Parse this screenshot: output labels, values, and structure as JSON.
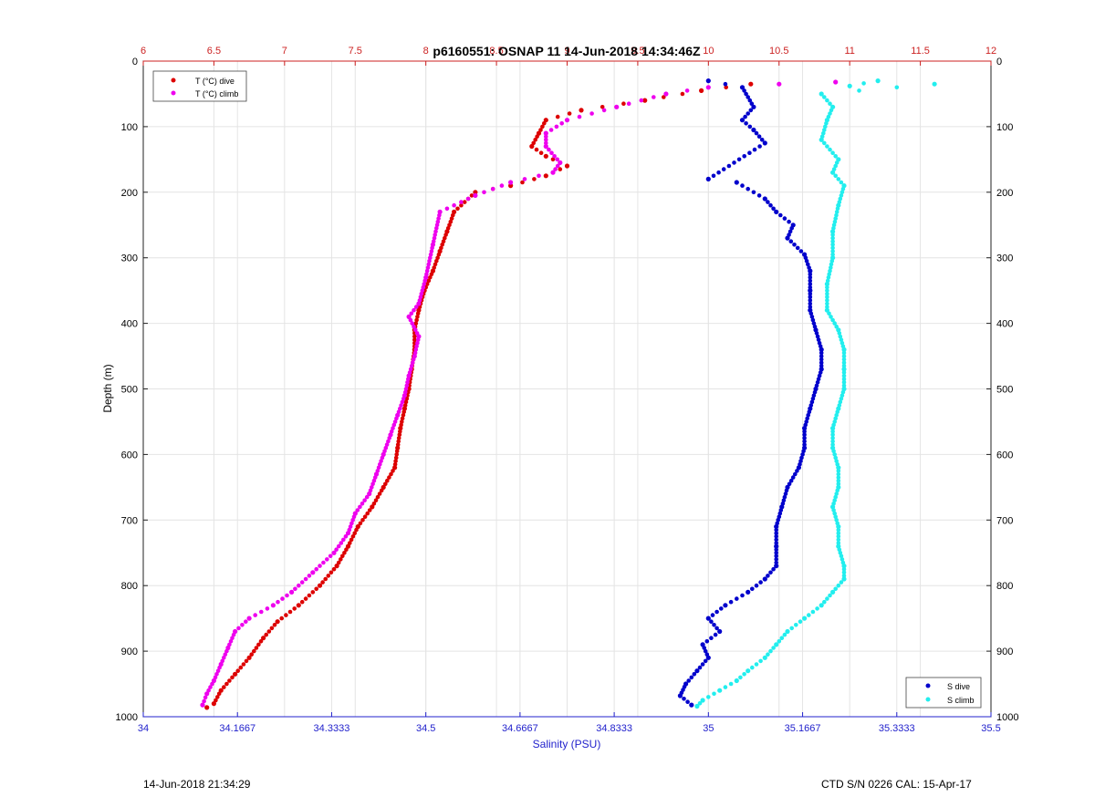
{
  "title": "p6160551: OSNAP 11 14-Jun-2018 14:34:46Z",
  "footer": {
    "left": "14-Jun-2018 21:34:29",
    "right": "CTD S/N 0226  CAL: 15-Apr-17"
  },
  "colors": {
    "t_dive": "#dd0000",
    "t_climb": "#ee00ee",
    "s_dive": "#0000cc",
    "s_climb": "#22eeee",
    "temp_axis": "#cc2222",
    "sal_axis": "#2222cc",
    "grid": "#e4e4e4"
  },
  "chart_data": {
    "type": "scatter",
    "ylabel": "Depth (m)",
    "xlabel_bottom": "Salinity (PSU)",
    "xlabel_top": "",
    "ylim": [
      0,
      1000
    ],
    "y_reversed": true,
    "y_ticks": [
      "0",
      "100",
      "200",
      "300",
      "400",
      "500",
      "600",
      "700",
      "800",
      "900",
      "1000"
    ],
    "salinity_axis": {
      "range": [
        34,
        35.5
      ],
      "ticks": [
        34,
        34.16667,
        34.33333,
        34.5,
        34.66667,
        34.83333,
        35,
        35.16667,
        35.33333,
        35.5
      ],
      "tick_labels": [
        "34",
        "34.1667",
        "34.3333",
        "34.5",
        "34.6667",
        "34.8333",
        "35",
        "35.1667",
        "35.3333",
        "35.5"
      ]
    },
    "temperature_axis": {
      "range": [
        6,
        12
      ],
      "ticks": [
        6,
        6.5,
        7,
        7.5,
        8,
        8.5,
        9,
        9.5,
        10,
        10.5,
        11,
        11.5,
        12
      ],
      "tick_labels": [
        "6",
        "6.5",
        "7",
        "7.5",
        "8",
        "8.5",
        "9",
        "9.5",
        "10",
        "10.5",
        "11",
        "11.5",
        "12"
      ]
    },
    "grid": true,
    "legends": [
      {
        "placement": "top-left",
        "entries": [
          "T (°C) dive",
          "T (°C) climb"
        ]
      },
      {
        "placement": "bottom-right",
        "entries": [
          "S dive",
          "S climb"
        ]
      }
    ],
    "series": [
      {
        "name": "T (°C) dive",
        "axis": "temperature",
        "points": [
          [
            10.3,
            35
          ],
          [
            9.95,
            45
          ],
          [
            9.55,
            60
          ],
          [
            9.1,
            75
          ],
          [
            8.85,
            90
          ],
          [
            8.8,
            110
          ],
          [
            8.75,
            130
          ],
          [
            8.85,
            145
          ],
          [
            9.0,
            160
          ],
          [
            8.85,
            175
          ],
          [
            8.6,
            190
          ],
          [
            8.35,
            200
          ],
          [
            8.2,
            230
          ],
          [
            8.15,
            260
          ],
          [
            8.1,
            290
          ],
          [
            8.05,
            320
          ],
          [
            7.99,
            350
          ],
          [
            7.95,
            380
          ],
          [
            7.92,
            410
          ],
          [
            7.92,
            440
          ],
          [
            7.9,
            470
          ],
          [
            7.88,
            500
          ],
          [
            7.85,
            530
          ],
          [
            7.82,
            560
          ],
          [
            7.8,
            590
          ],
          [
            7.78,
            620
          ],
          [
            7.7,
            650
          ],
          [
            7.62,
            680
          ],
          [
            7.52,
            710
          ],
          [
            7.45,
            740
          ],
          [
            7.37,
            770
          ],
          [
            7.25,
            800
          ],
          [
            7.1,
            830
          ],
          [
            6.95,
            855
          ],
          [
            6.85,
            880
          ],
          [
            6.75,
            910
          ],
          [
            6.65,
            935
          ],
          [
            6.55,
            960
          ],
          [
            6.5,
            980
          ],
          [
            6.45,
            986
          ]
        ]
      },
      {
        "name": "T (°C) climb",
        "axis": "temperature",
        "points": [
          [
            10.9,
            32
          ],
          [
            10.5,
            35
          ],
          [
            10.0,
            40
          ],
          [
            9.7,
            50
          ],
          [
            9.35,
            70
          ],
          [
            9.0,
            90
          ],
          [
            8.85,
            110
          ],
          [
            8.85,
            130
          ],
          [
            8.95,
            155
          ],
          [
            8.9,
            170
          ],
          [
            8.6,
            185
          ],
          [
            8.35,
            205
          ],
          [
            8.1,
            230
          ],
          [
            8.05,
            280
          ],
          [
            8.0,
            330
          ],
          [
            7.95,
            370
          ],
          [
            7.88,
            390
          ],
          [
            7.95,
            420
          ],
          [
            7.92,
            450
          ],
          [
            7.88,
            480
          ],
          [
            7.85,
            510
          ],
          [
            7.8,
            540
          ],
          [
            7.75,
            570
          ],
          [
            7.7,
            600
          ],
          [
            7.65,
            630
          ],
          [
            7.6,
            660
          ],
          [
            7.5,
            690
          ],
          [
            7.45,
            720
          ],
          [
            7.35,
            750
          ],
          [
            7.2,
            780
          ],
          [
            7.05,
            810
          ],
          [
            6.92,
            830
          ],
          [
            6.75,
            850
          ],
          [
            6.65,
            870
          ],
          [
            6.6,
            895
          ],
          [
            6.55,
            920
          ],
          [
            6.5,
            945
          ],
          [
            6.45,
            965
          ],
          [
            6.42,
            982
          ]
        ]
      },
      {
        "name": "S dive",
        "axis": "salinity",
        "points": [
          [
            35.0,
            30
          ],
          [
            35.06,
            40
          ],
          [
            35.08,
            70
          ],
          [
            35.06,
            90
          ],
          [
            35.08,
            105
          ],
          [
            35.1,
            125
          ],
          [
            35.0,
            180
          ],
          [
            35.05,
            185
          ],
          [
            35.1,
            210
          ],
          [
            35.12,
            230
          ],
          [
            35.15,
            250
          ],
          [
            35.14,
            270
          ],
          [
            35.17,
            295
          ],
          [
            35.18,
            320
          ],
          [
            35.18,
            350
          ],
          [
            35.18,
            380
          ],
          [
            35.19,
            410
          ],
          [
            35.2,
            440
          ],
          [
            35.2,
            470
          ],
          [
            35.19,
            500
          ],
          [
            35.18,
            530
          ],
          [
            35.17,
            560
          ],
          [
            35.17,
            590
          ],
          [
            35.16,
            620
          ],
          [
            35.14,
            650
          ],
          [
            35.13,
            680
          ],
          [
            35.12,
            710
          ],
          [
            35.12,
            740
          ],
          [
            35.12,
            770
          ],
          [
            35.1,
            790
          ],
          [
            35.07,
            810
          ],
          [
            35.03,
            830
          ],
          [
            35.0,
            850
          ],
          [
            35.02,
            870
          ],
          [
            34.99,
            890
          ],
          [
            35.0,
            910
          ],
          [
            34.98,
            930
          ],
          [
            34.96,
            950
          ],
          [
            34.95,
            968
          ],
          [
            34.97,
            982
          ]
        ]
      },
      {
        "name": "S climb",
        "axis": "salinity",
        "points": [
          [
            35.3,
            30
          ],
          [
            35.25,
            38
          ],
          [
            35.4,
            35
          ],
          [
            35.2,
            50
          ],
          [
            35.22,
            70
          ],
          [
            35.21,
            90
          ],
          [
            35.2,
            120
          ],
          [
            35.23,
            150
          ],
          [
            35.22,
            170
          ],
          [
            35.24,
            190
          ],
          [
            35.23,
            220
          ],
          [
            35.22,
            260
          ],
          [
            35.22,
            300
          ],
          [
            35.21,
            340
          ],
          [
            35.21,
            380
          ],
          [
            35.23,
            410
          ],
          [
            35.24,
            440
          ],
          [
            35.24,
            470
          ],
          [
            35.24,
            500
          ],
          [
            35.23,
            530
          ],
          [
            35.22,
            560
          ],
          [
            35.22,
            590
          ],
          [
            35.23,
            620
          ],
          [
            35.23,
            650
          ],
          [
            35.22,
            680
          ],
          [
            35.23,
            710
          ],
          [
            35.23,
            740
          ],
          [
            35.24,
            770
          ],
          [
            35.24,
            790
          ],
          [
            35.22,
            810
          ],
          [
            35.2,
            830
          ],
          [
            35.17,
            850
          ],
          [
            35.14,
            870
          ],
          [
            35.12,
            890
          ],
          [
            35.1,
            910
          ],
          [
            35.07,
            930
          ],
          [
            35.05,
            945
          ],
          [
            35.02,
            960
          ],
          [
            34.99,
            975
          ],
          [
            34.98,
            984
          ]
        ]
      }
    ]
  }
}
